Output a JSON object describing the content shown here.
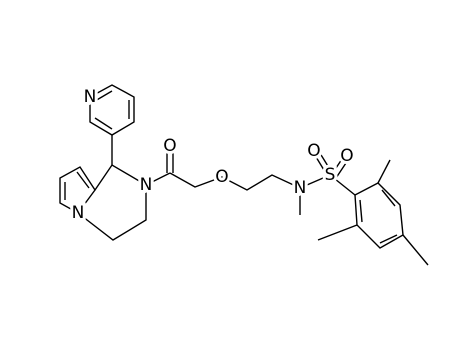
{
  "atoms": [
    {
      "label": "N"
    },
    {
      "label": "N"
    },
    {
      "label": "N"
    },
    {
      "label": "O"
    },
    {
      "label": "O"
    },
    {
      "label": "N"
    },
    {
      "label": "S"
    },
    {
      "label": "O"
    },
    {
      "label": "O"
    }
  ]
}
